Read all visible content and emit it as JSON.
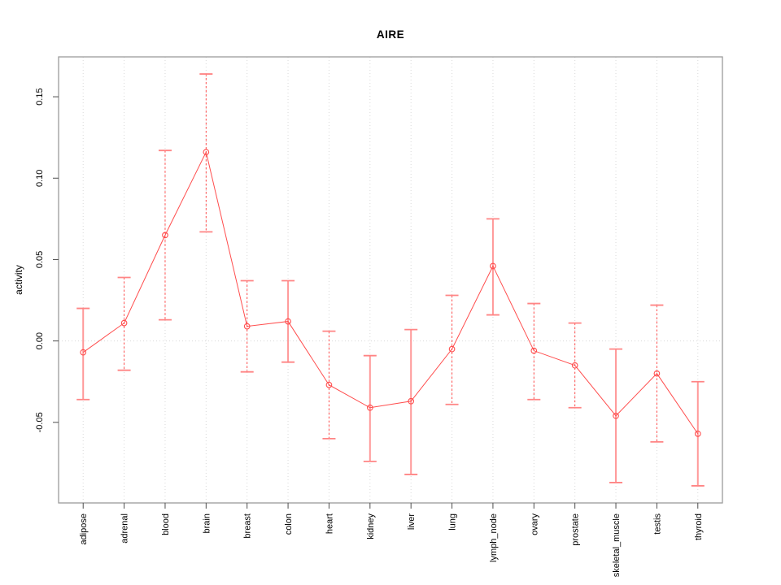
{
  "chart_data": {
    "type": "line",
    "title": "AIRE",
    "xlabel": "",
    "ylabel": "activity",
    "categories": [
      "adipose",
      "adrenal",
      "blood",
      "brain",
      "breast",
      "colon",
      "heart",
      "kidney",
      "liver",
      "lung",
      "lymph_node",
      "ovary",
      "prostate",
      "skeletal_muscle",
      "testis",
      "thyroid"
    ],
    "series": [
      {
        "name": "activity",
        "values": [
          -0.007,
          0.011,
          0.065,
          0.116,
          0.009,
          0.012,
          -0.027,
          -0.041,
          -0.037,
          -0.005,
          0.046,
          -0.006,
          -0.015,
          -0.046,
          -0.02,
          -0.057
        ],
        "ci_upper": [
          0.02,
          0.039,
          0.117,
          0.164,
          0.037,
          0.037,
          0.006,
          -0.009,
          0.007,
          0.028,
          0.075,
          0.023,
          0.011,
          -0.005,
          0.022,
          -0.025
        ],
        "ci_lower": [
          -0.036,
          -0.018,
          0.013,
          0.067,
          -0.019,
          -0.013,
          -0.06,
          -0.074,
          -0.082,
          -0.039,
          0.016,
          -0.036,
          -0.041,
          -0.087,
          -0.062,
          -0.089
        ],
        "bar_styles": [
          "solid",
          "dashed",
          "dashed",
          "dashed",
          "dashed",
          "solid",
          "dashed",
          "solid",
          "solid",
          "dashed",
          "solid",
          "dashed",
          "dashed",
          "solid",
          "dashed",
          "solid"
        ]
      }
    ],
    "ytick_values": [
      -0.05,
      0.0,
      0.05,
      0.1,
      0.15
    ],
    "ytick_labels": [
      "-0.05",
      "0.00",
      "0.05",
      "0.10",
      "0.15"
    ],
    "ylim": [
      -0.0995,
      0.1745
    ],
    "point_marker": "open-circle",
    "grid": {
      "vertical_dotted_per_category": true,
      "horizontal_dotted_zero_line": true
    },
    "legend": "none",
    "colors": {
      "line": "#ff4d4d",
      "point": "#ff4d4d",
      "error_bar_dashed": "#ff4d4d",
      "error_bar_solid": "#ff9999",
      "error_bar_cap": "#ff8585",
      "frame": "#9c9c9c",
      "gridline": "#d9d9d9",
      "tick": "#4d4d4d",
      "text": "#000000"
    }
  }
}
